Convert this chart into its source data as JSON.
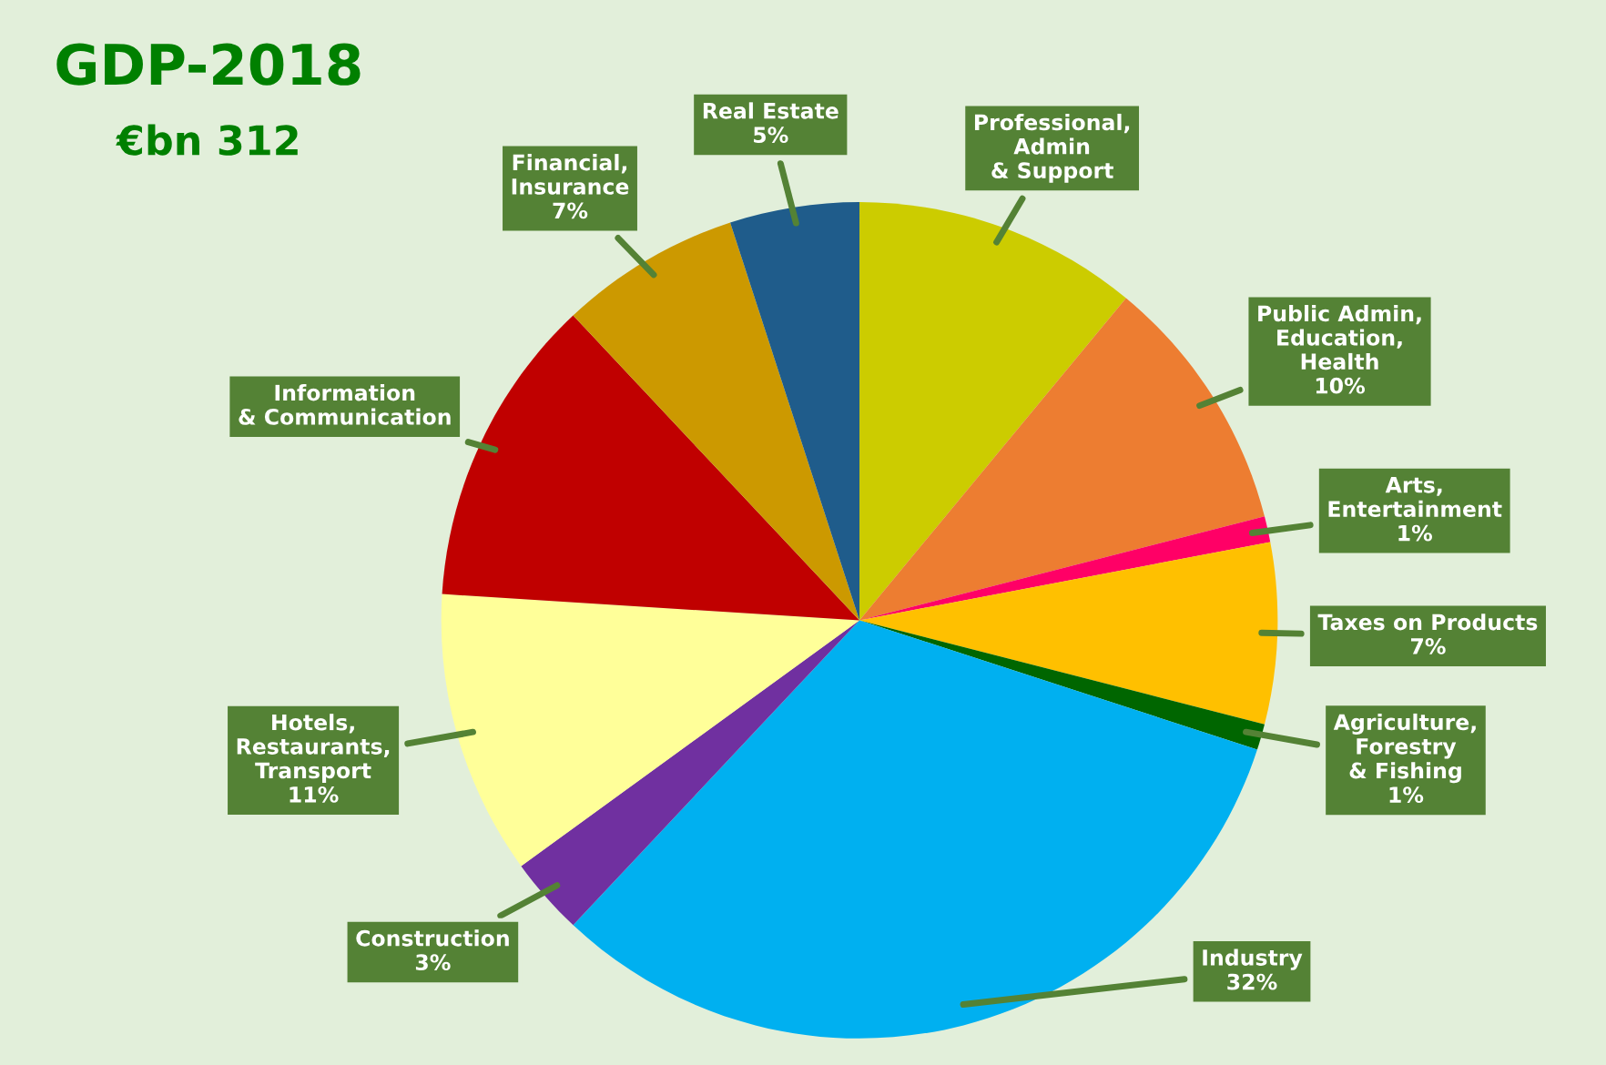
{
  "chart_data": {
    "type": "pie",
    "title": "GDP-2018",
    "subtitle": "€bn 312",
    "categories": [
      "Professional, Admin & Support",
      "Public Admin, Education, Health",
      "Arts, Entertainment",
      "Taxes on Products",
      "Agriculture, Forestry & Fishing",
      "Industry",
      "Construction",
      "Hotels, Restaurants, Transport",
      "Information & Communication",
      "Financial, Insurance",
      "Real Estate"
    ],
    "values": [
      11,
      10,
      1,
      7,
      1,
      32,
      3,
      11,
      12,
      7,
      5
    ],
    "colors": [
      "#cccc00",
      "#ed7d31",
      "#ff0066",
      "#ffc000",
      "#006600",
      "#00b0f0",
      "#7030a0",
      "#ffff99",
      "#c00000",
      "#cc9900",
      "#1f5c8b"
    ],
    "value_labels": [
      null,
      "10%",
      "1%",
      "7%",
      "1%",
      "32%",
      "3%",
      "11%",
      null,
      "7%",
      "5%"
    ]
  }
}
